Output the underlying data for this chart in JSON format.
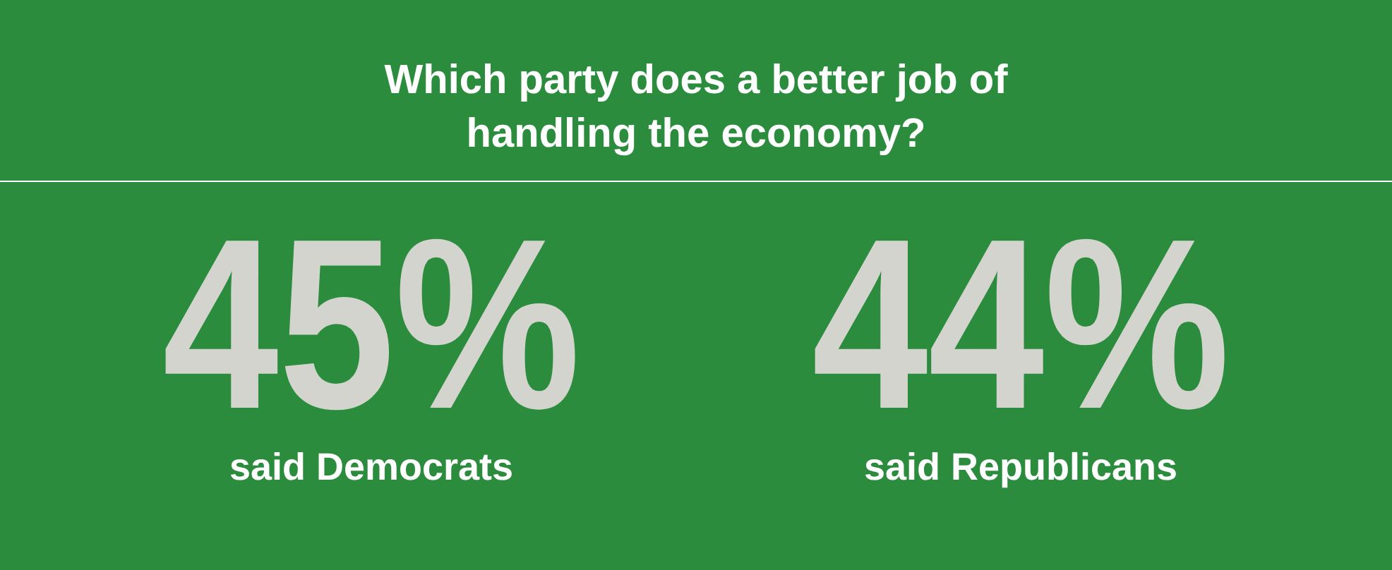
{
  "chart_data": {
    "type": "other",
    "title": "Which party does a better job of handling the economy?",
    "categories": [
      "said Democrats",
      "said Republicans"
    ],
    "values": [
      45,
      44
    ],
    "value_labels": [
      "45%",
      "44%"
    ]
  }
}
